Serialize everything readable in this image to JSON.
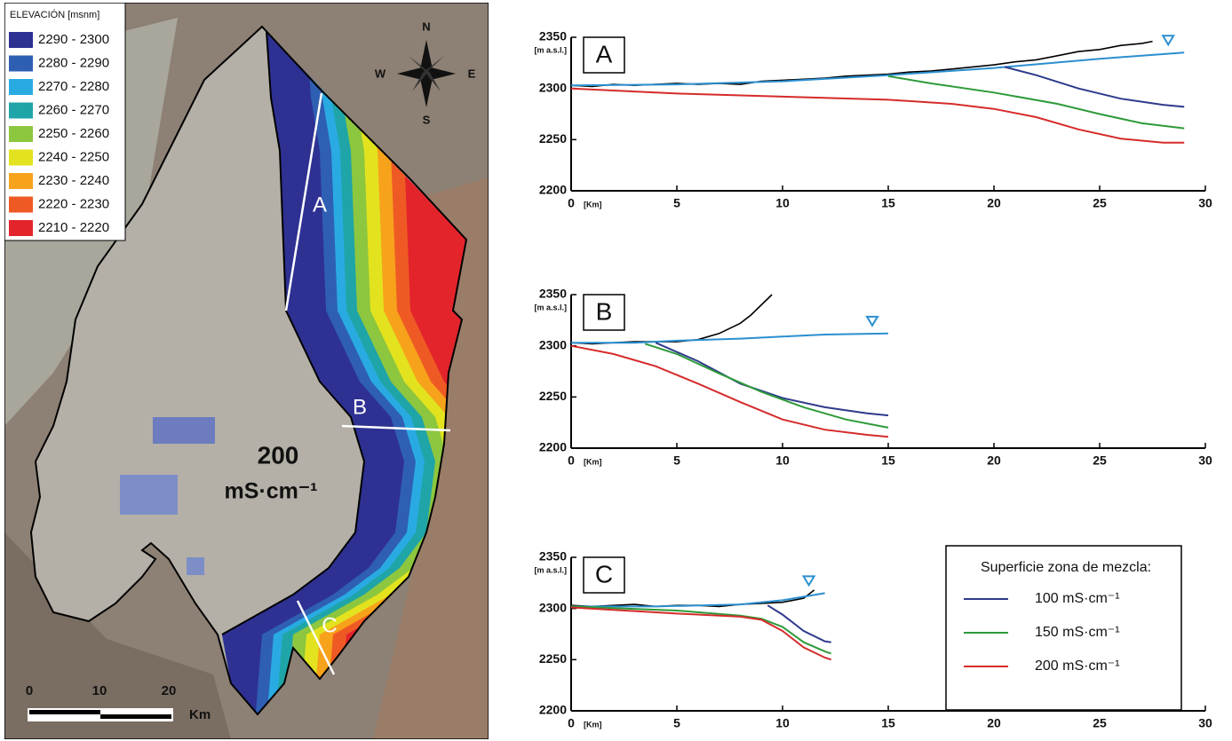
{
  "map": {
    "legend": {
      "title": "ELEVACIÓN [msnm]",
      "items": [
        {
          "label": "2290 - 2300",
          "color": "#2e3192"
        },
        {
          "label": "2280 - 2290",
          "color": "#2f5fb3"
        },
        {
          "label": "2270 - 2280",
          "color": "#29abe2"
        },
        {
          "label": "2260 - 2270",
          "color": "#1fa5a8"
        },
        {
          "label": "2250 - 2260",
          "color": "#8dc63f"
        },
        {
          "label": "2240 - 2250",
          "color": "#e2e31e"
        },
        {
          "label": "2230 - 2240",
          "color": "#f7a21b"
        },
        {
          "label": "2220 - 2230",
          "color": "#ef5a24"
        },
        {
          "label": "2210 - 2220",
          "color": "#e3242b"
        }
      ]
    },
    "compass": {
      "n": "N",
      "s": "S",
      "w": "W",
      "e": "E"
    },
    "transects": [
      "A",
      "B",
      "C"
    ],
    "salinity": {
      "value": "200",
      "unit": "mS·cm⁻¹"
    },
    "scale": {
      "labels": [
        "0",
        "10",
        "20"
      ],
      "unit": "Km"
    }
  },
  "chart_data": [
    {
      "type": "line",
      "title": "A",
      "y_label": "[m a.s.l.]",
      "x_label": "[Km]",
      "xlim": [
        0,
        30
      ],
      "ylim": [
        2200,
        2350
      ],
      "xticks": [
        0,
        5,
        10,
        15,
        20,
        25,
        30
      ],
      "yticks": [
        2200,
        2250,
        2300,
        2350
      ],
      "series": [
        {
          "color": "#000000",
          "x": [
            0,
            1,
            2,
            3,
            4,
            5,
            6,
            7,
            8,
            9,
            10,
            11,
            12,
            13,
            14,
            15,
            16,
            17,
            18,
            19,
            20,
            21,
            22,
            23,
            24,
            25,
            26,
            27,
            27.5
          ],
          "values": [
            2303,
            2302,
            2304,
            2303,
            2304,
            2305,
            2304,
            2305,
            2304,
            2307,
            2308,
            2309,
            2310,
            2312,
            2313,
            2314,
            2316,
            2317,
            2319,
            2321,
            2323,
            2326,
            2328,
            2332,
            2336,
            2338,
            2342,
            2344,
            2346
          ]
        },
        {
          "color": "#2b8fd0",
          "x": [
            0,
            5,
            10,
            15,
            20,
            25,
            29
          ],
          "values": [
            2303,
            2304,
            2307,
            2313,
            2320,
            2329,
            2335
          ]
        },
        {
          "color": "#2e3a8c",
          "x": [
            20.5,
            22,
            24,
            26,
            28,
            29
          ],
          "values": [
            2321,
            2313,
            2300,
            2290,
            2284,
            2282
          ]
        },
        {
          "color": "#2e9a3a",
          "x": [
            15,
            17,
            20,
            23,
            25,
            27,
            29
          ],
          "values": [
            2312,
            2305,
            2296,
            2285,
            2275,
            2266,
            2261
          ]
        },
        {
          "color": "#d62b2b",
          "x": [
            0,
            5,
            10,
            15,
            18,
            20,
            22,
            24,
            26,
            28,
            29
          ],
          "values": [
            2300,
            2295,
            2292,
            2289,
            2285,
            2280,
            2272,
            2260,
            2251,
            2247,
            2247
          ]
        }
      ]
    },
    {
      "type": "line",
      "title": "B",
      "y_label": "[m a.s.l.]",
      "x_label": "[Km]",
      "xlim": [
        0,
        30
      ],
      "ylim": [
        2200,
        2350
      ],
      "xticks": [
        0,
        5,
        10,
        15,
        20,
        25,
        30
      ],
      "yticks": [
        2200,
        2250,
        2300,
        2350
      ],
      "series": [
        {
          "color": "#000000",
          "x": [
            0,
            1,
            2,
            3,
            4,
            5,
            6,
            7,
            8,
            8.5,
            9,
            9.5
          ],
          "values": [
            2303,
            2302,
            2303,
            2304,
            2304,
            2304,
            2306,
            2312,
            2322,
            2330,
            2340,
            2350
          ]
        },
        {
          "color": "#2b8fd0",
          "x": [
            0,
            3,
            5,
            8,
            10,
            12,
            15
          ],
          "values": [
            2303,
            2303,
            2305,
            2307,
            2309,
            2311,
            2312
          ]
        },
        {
          "color": "#2e3a8c",
          "x": [
            4,
            6,
            8,
            10,
            12,
            14,
            15
          ],
          "values": [
            2303,
            2285,
            2263,
            2249,
            2240,
            2234,
            2232
          ]
        },
        {
          "color": "#2e9a3a",
          "x": [
            3.5,
            5,
            7,
            9,
            11,
            13,
            15
          ],
          "values": [
            2302,
            2292,
            2273,
            2255,
            2240,
            2228,
            2220
          ]
        },
        {
          "color": "#d62b2b",
          "x": [
            0,
            2,
            4,
            6,
            8,
            10,
            12,
            14,
            15
          ],
          "values": [
            2300,
            2292,
            2280,
            2263,
            2245,
            2228,
            2218,
            2213,
            2211
          ]
        }
      ]
    },
    {
      "type": "line",
      "title": "C",
      "y_label": "[m a.s.l.]",
      "x_label": "[Km]",
      "xlim": [
        0,
        30
      ],
      "ylim": [
        2200,
        2350
      ],
      "xticks": [
        0,
        5,
        10,
        15,
        20,
        25,
        30
      ],
      "yticks": [
        2200,
        2250,
        2300,
        2350
      ],
      "legend_title": "Superficie zona de mezcla:",
      "series": [
        {
          "color": "#000000",
          "x": [
            0,
            1,
            2,
            3,
            4,
            5,
            6,
            7,
            8,
            9,
            10,
            11,
            11.5
          ],
          "values": [
            2303,
            2302,
            2303,
            2304,
            2302,
            2303,
            2303,
            2302,
            2304,
            2305,
            2306,
            2310,
            2318
          ]
        },
        {
          "color": "#2b8fd0",
          "x": [
            0,
            4,
            8,
            10,
            12
          ],
          "values": [
            2302,
            2302,
            2304,
            2308,
            2315
          ]
        },
        {
          "name": "100 mS·cm⁻¹",
          "color": "#2e3a8c",
          "x": [
            9.3,
            10,
            11,
            12,
            12.3
          ],
          "values": [
            2303,
            2294,
            2278,
            2268,
            2267
          ]
        },
        {
          "name": "150 mS·cm⁻¹",
          "color": "#2e9a3a",
          "x": [
            0,
            5,
            8,
            9,
            10,
            11,
            12,
            12.3
          ],
          "values": [
            2302,
            2298,
            2293,
            2290,
            2282,
            2267,
            2258,
            2256
          ]
        },
        {
          "name": "200 mS·cm⁻¹",
          "color": "#d62b2b",
          "x": [
            0,
            5,
            8,
            9,
            10,
            11,
            12,
            12.3
          ],
          "values": [
            2301,
            2295,
            2292,
            2289,
            2278,
            2262,
            2252,
            2250
          ]
        }
      ]
    }
  ]
}
